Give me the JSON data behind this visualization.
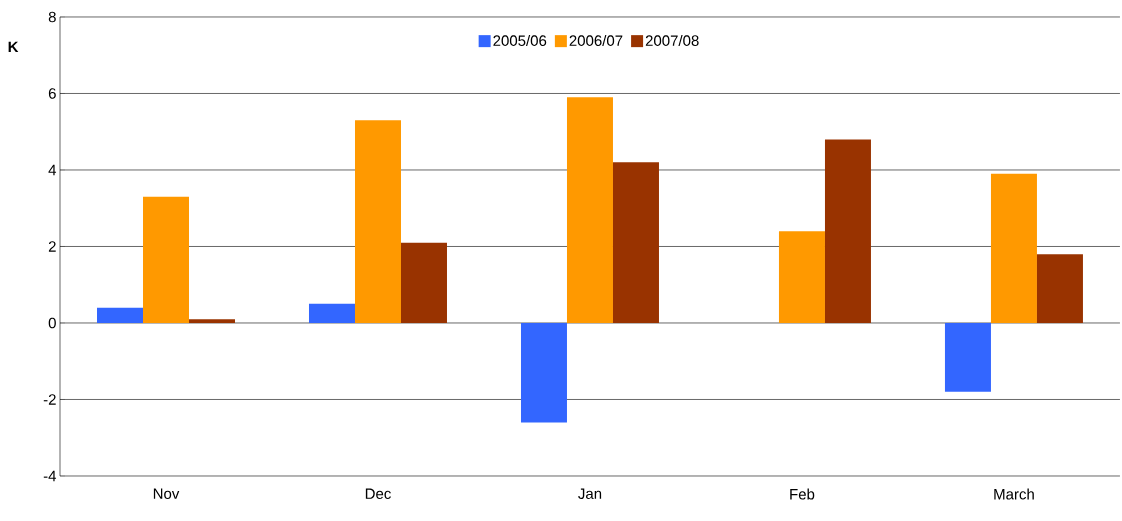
{
  "chart_data": {
    "type": "bar",
    "ylabel": "K",
    "categories": [
      "Nov",
      "Dec",
      "Jan",
      "Feb",
      "March"
    ],
    "series": [
      {
        "name": "2005/06",
        "color": "#3366ff",
        "values": [
          0.4,
          0.5,
          -2.6,
          0,
          -1.8
        ]
      },
      {
        "name": "2006/07",
        "color": "#ff9900",
        "values": [
          3.3,
          5.3,
          5.9,
          2.4,
          3.9
        ]
      },
      {
        "name": "2007/08",
        "color": "#993300",
        "values": [
          0.1,
          2.1,
          4.2,
          4.8,
          1.8
        ]
      }
    ],
    "ylim": [
      -4,
      8
    ],
    "yticks": [
      -4,
      -2,
      0,
      2,
      4,
      6,
      8
    ],
    "grid": "y",
    "legend": "top"
  }
}
